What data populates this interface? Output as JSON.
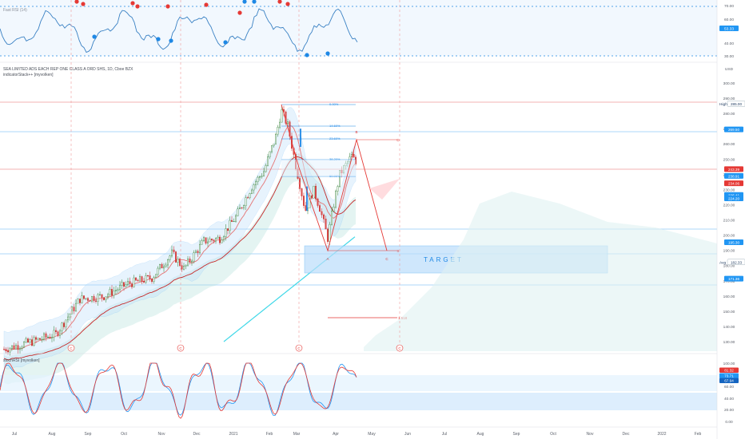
{
  "header": {
    "title": "SEA LIMITED ADS EACH REP ONE CLASS A ORD SHS, 1D, Cboe BZX",
    "indicator": "indicatorStack++ [myvolken]",
    "stoch_label": "stochRSI [myvolken]",
    "rsi_label": "Fast RSI (14)"
  },
  "colors": {
    "up": "#26a69a",
    "down": "#ef5350",
    "body_up": "#ffffff",
    "body_down": "#e0504d",
    "cyan": "#40d8e8",
    "blue": "#2962ff",
    "accent_red": "#e53935",
    "grid": "#f0f3f7"
  },
  "timeline": {
    "labels": [
      "Jul",
      "Aug",
      "Sep",
      "Oct",
      "Nov",
      "Dec",
      "2021",
      "Feb",
      "Mar",
      "Apr",
      "May",
      "Jun",
      "Jul",
      "Aug",
      "Sep",
      "Oct",
      "Nov",
      "Dec",
      "2022",
      "Feb"
    ]
  },
  "rsi_panel": {
    "ticks": [
      "70.00",
      "60.00",
      "40.00",
      "30.00"
    ],
    "current": "53.33"
  },
  "stoch_panel": {
    "ticks": [
      "100.00",
      "80.00",
      "60.00",
      "40.00",
      "20.00",
      "0.00"
    ],
    "current_k": "81.32",
    "current_d": "73.71",
    "current_x": "67.94"
  },
  "price_panel": {
    "ticks": [
      "USD",
      "300.00",
      "290.00",
      "280.00",
      "270.00",
      "260.00",
      "250.00",
      "240.00",
      "230.00",
      "220.00",
      "210.00",
      "200.00",
      "190.00",
      "180.00",
      "170.00",
      "160.00",
      "150.00",
      "140.00",
      "130.00"
    ],
    "badges": [
      {
        "label": "High",
        "value": "285.00",
        "kind": "high"
      },
      {
        "label": "",
        "value": "269.50",
        "kind": "blue"
      },
      {
        "label": "",
        "value": "243.39",
        "kind": "red"
      },
      {
        "label": "",
        "value": "238.91",
        "kind": "blue"
      },
      {
        "label": "",
        "value": "234.06",
        "kind": "red"
      },
      {
        "label": "",
        "value": "226.41",
        "kind": "blue"
      },
      {
        "label": "",
        "value": "224.20",
        "kind": "blue"
      },
      {
        "label": "",
        "value": "195.30",
        "kind": "blue"
      },
      {
        "label": "Avg",
        "value": "182.33",
        "kind": "avg"
      },
      {
        "label": "",
        "value": "171.36",
        "kind": "blue"
      }
    ]
  },
  "fib_levels": [
    "0.00%",
    "14.60%",
    "23.60%",
    "38.20%",
    "50.00%"
  ],
  "pattern_points": [
    "B",
    "D",
    "A",
    "C",
    "X"
  ],
  "target_label": "TARGET",
  "target_ext": "1.618",
  "cycle_markers": [
    "C",
    "C",
    "C",
    "C"
  ],
  "chart_data": {
    "type": "candlestick",
    "title": "SEA LIMITED ADS EACH REP ONE CLASS A ORD SHS, 1D, Cboe BZX",
    "y_range": [
      125,
      303
    ],
    "x_range_months": [
      "Jul",
      "Feb"
    ],
    "candles_approx": [
      {
        "x": "Jul",
        "close": 122
      },
      {
        "x": "Aug",
        "close": 133
      },
      {
        "x": "Sep",
        "close": 158
      },
      {
        "x": "Oct",
        "close": 164
      },
      {
        "x": "Nov",
        "close": 183
      },
      {
        "x": "Dec",
        "close": 196
      },
      {
        "x": "2021",
        "close": 203
      },
      {
        "x": "Feb",
        "close": 268
      },
      {
        "x": "Mar",
        "close": 222
      },
      {
        "x": "Mar-end",
        "close": 198
      },
      {
        "x": "Apr",
        "close": 252
      },
      {
        "x": "May",
        "close": 243
      }
    ],
    "harmonic_pattern": {
      "X": 285,
      "A": 195,
      "B": 262,
      "C": 193,
      "D": 262
    },
    "target_zone": [
      177,
      195
    ],
    "extension_1618": 152,
    "last_price": 243.39,
    "high": 285.0,
    "average": 182.33
  }
}
